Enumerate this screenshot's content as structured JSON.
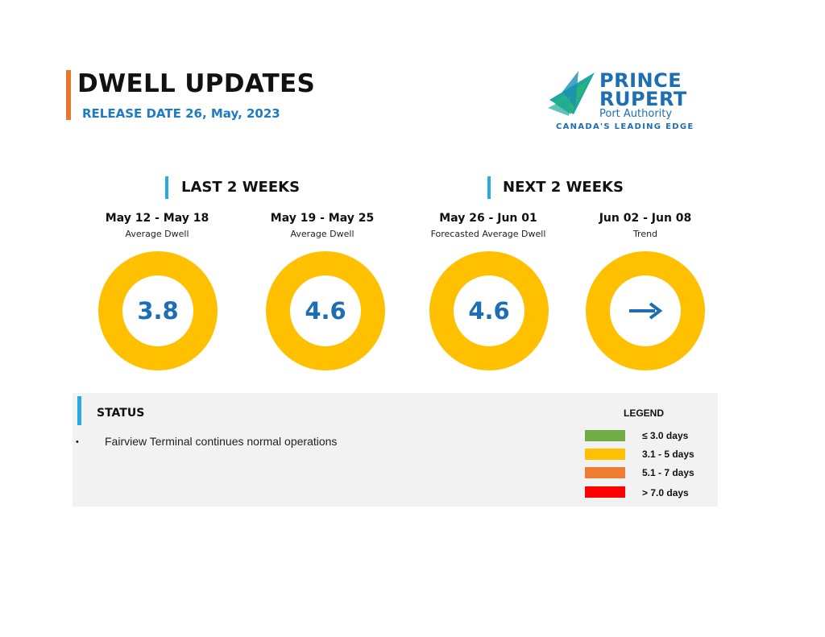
{
  "header": {
    "title": "DWELL UPDATES",
    "release": "RELEASE DATE 26, May, 2023"
  },
  "logo": {
    "line1": "PRINCE",
    "line2": "RUPERT",
    "line3": "Port Authority",
    "tagline": "CANADA'S LEADING EDGE",
    "colors": {
      "teal": "#1FA8A0",
      "green": "#2BB673",
      "blue": "#1C6FB5"
    }
  },
  "sections": {
    "last": "LAST 2 WEEKS",
    "next": "NEXT 2 WEEKS"
  },
  "periods": [
    {
      "range": "May 12 - May 18",
      "label": "Average Dwell",
      "value": "3.8"
    },
    {
      "range": "May 19 - May 25",
      "label": "Average Dwell",
      "value": "4.6"
    },
    {
      "range": "May 26 - Jun 01",
      "label": "Forecasted Average Dwell",
      "value": "4.6"
    },
    {
      "range": "Jun 02 - Jun 08",
      "label": "Trend",
      "icon": "right-arrow-icon"
    }
  ],
  "ring_color": "#FFC000",
  "status": {
    "title": "STATUS",
    "items": [
      "Fairview Terminal continues normal operations"
    ]
  },
  "legend": {
    "title": "LEGEND",
    "entries": [
      {
        "label": "≤ 3.0 days",
        "color": "#70AD47"
      },
      {
        "label": "3.1 - 5 days",
        "color": "#FFC000"
      },
      {
        "label": "5.1 - 7 days",
        "color": "#ED7D31"
      },
      {
        "label": "> 7.0 days",
        "color": "#FF0000"
      }
    ]
  }
}
